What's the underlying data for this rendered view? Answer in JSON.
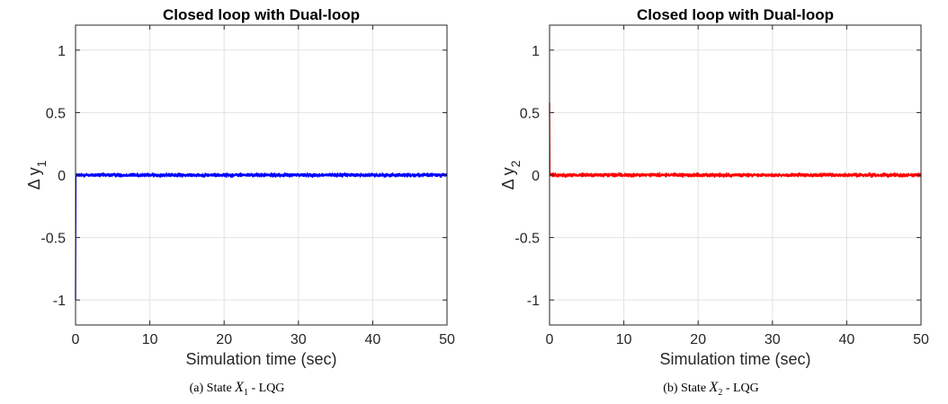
{
  "chart_data": [
    {
      "type": "line",
      "title": "Closed loop with Dual-loop",
      "xlabel": "Simulation time (sec)",
      "ylabel": "Δ y",
      "ylabel_subscript": "1",
      "xlim": [
        0,
        50
      ],
      "ylim": [
        -1.2,
        1.2
      ],
      "xticks": [
        0,
        10,
        20,
        30,
        40,
        50
      ],
      "xtick_labels": [
        "0",
        "10",
        "20",
        "30",
        "40",
        "50"
      ],
      "yticks": [
        1,
        0.5,
        0,
        -0.5,
        -1
      ],
      "ytick_labels": [
        "1",
        "0.5",
        "0",
        "-0.5",
        "-1"
      ],
      "grid": true,
      "series": [
        {
          "color": "#0000ff",
          "initial_value": -1,
          "steady_value": 0,
          "noise_amplitude": 0.02
        }
      ],
      "caption": {
        "prefix": "(a) State ",
        "var": "X",
        "sub": "1",
        "suffix": " - LQG"
      }
    },
    {
      "type": "line",
      "title": "Closed loop with Dual-loop",
      "xlabel": "Simulation time (sec)",
      "ylabel": "Δ y",
      "ylabel_subscript": "2",
      "xlim": [
        0,
        50
      ],
      "ylim": [
        -1.2,
        1.2
      ],
      "xticks": [
        0,
        10,
        20,
        30,
        40,
        50
      ],
      "xtick_labels": [
        "0",
        "10",
        "20",
        "30",
        "40",
        "50"
      ],
      "yticks": [
        1,
        0.5,
        0,
        -0.5,
        -1
      ],
      "ytick_labels": [
        "1",
        "0.5",
        "0",
        "-0.5",
        "-1"
      ],
      "grid": true,
      "series": [
        {
          "color": "#ff0000",
          "initial_value": 0.58,
          "steady_value": 0,
          "noise_amplitude": 0.02
        }
      ],
      "caption": {
        "prefix": "(b) State ",
        "var": "X",
        "sub": "2",
        "suffix": " - LQG"
      }
    }
  ]
}
